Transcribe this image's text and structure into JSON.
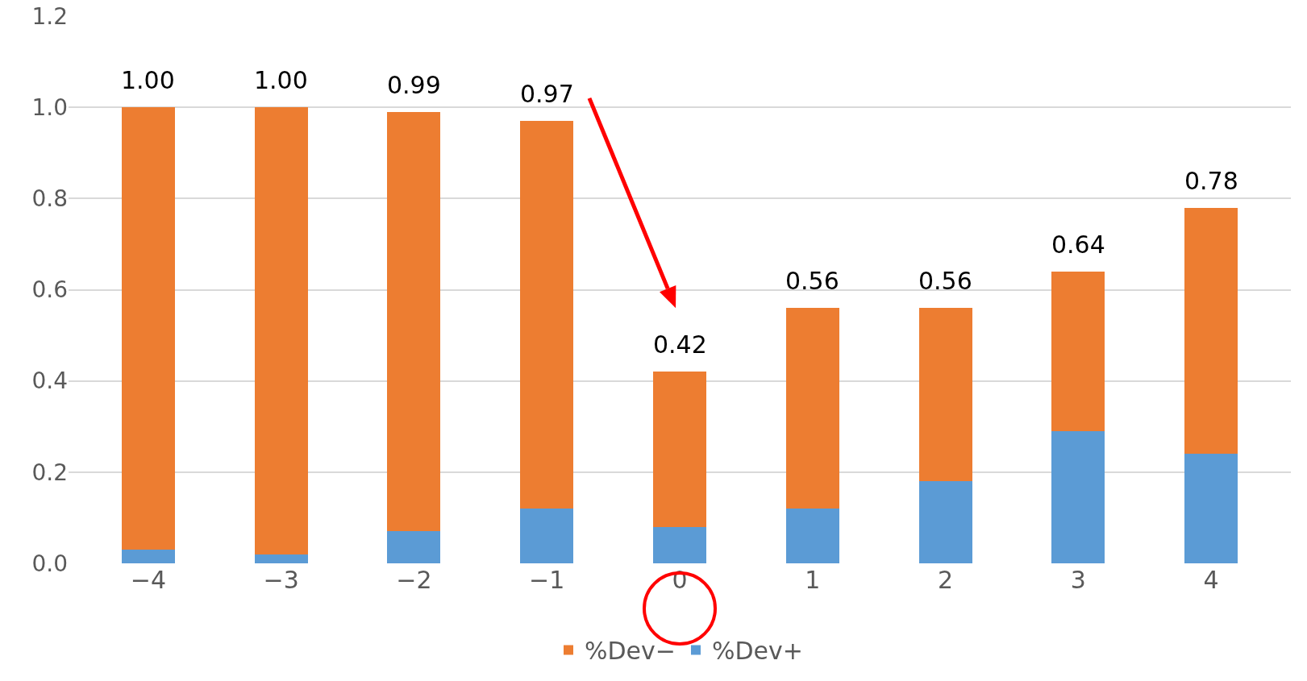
{
  "chart_data": {
    "type": "bar",
    "stacked": true,
    "categories": [
      "−4",
      "−3",
      "−2",
      "−1",
      "0",
      "1",
      "2",
      "3",
      "4"
    ],
    "series": [
      {
        "name": "%Dev+",
        "color": "#5b9bd5",
        "values": [
          0.03,
          0.02,
          0.07,
          0.12,
          0.08,
          0.12,
          0.18,
          0.29,
          0.24
        ]
      },
      {
        "name": "%Dev−",
        "color": "#ed7d31",
        "values": [
          0.97,
          0.98,
          0.92,
          0.85,
          0.34,
          0.44,
          0.38,
          0.35,
          0.54
        ]
      }
    ],
    "totals": [
      "1.00",
      "1.00",
      "0.99",
      "0.97",
      "0.42",
      "0.56",
      "0.56",
      "0.64",
      "0.78"
    ],
    "ylim": [
      0,
      1.2
    ],
    "yticks": [
      {
        "value": 0,
        "label": "0.0"
      },
      {
        "value": 0.2,
        "label": "0.2"
      },
      {
        "value": 0.4,
        "label": "0.4"
      },
      {
        "value": 0.6,
        "label": "0.6"
      },
      {
        "value": 0.8,
        "label": "0.8"
      },
      {
        "value": 1,
        "label": "1.0"
      },
      {
        "value": 1.2,
        "label": "1.2"
      }
    ],
    "grid": "y",
    "legend": "bottom"
  }
}
